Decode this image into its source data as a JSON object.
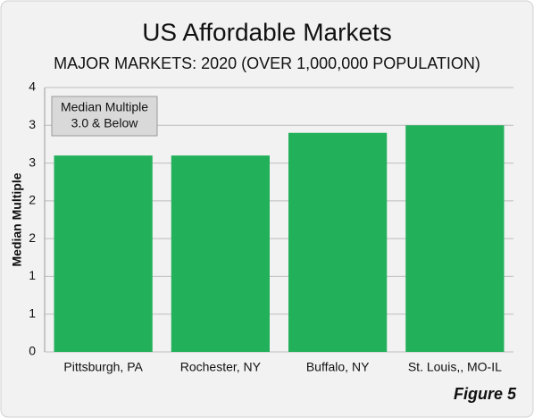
{
  "chart_data": {
    "type": "bar",
    "title": "US Affordable Markets",
    "subtitle": "MAJOR MARKETS: 2020 (OVER 1,000,000 POPULATION)",
    "y_label": "Median Multiple",
    "annotation": [
      "Median Multiple",
      "3.0 & Below"
    ],
    "footer": "Figure 5",
    "categories": [
      "Pittsburgh, PA",
      "Rochester, NY",
      "Buffalo, NY",
      "St. Louis,, MO-IL"
    ],
    "values": [
      2.6,
      2.6,
      2.9,
      3.0
    ],
    "color": "#22b05a",
    "ylim": [
      0,
      3.5
    ],
    "yticks": [
      0,
      {
        "value": 0.5,
        "label": "1"
      },
      1,
      {
        "value": 1.5,
        "label": "2"
      },
      2,
      {
        "value": 2.5,
        "label": "3"
      },
      3,
      {
        "value": 3.5,
        "label": "4"
      }
    ],
    "grid": true
  }
}
